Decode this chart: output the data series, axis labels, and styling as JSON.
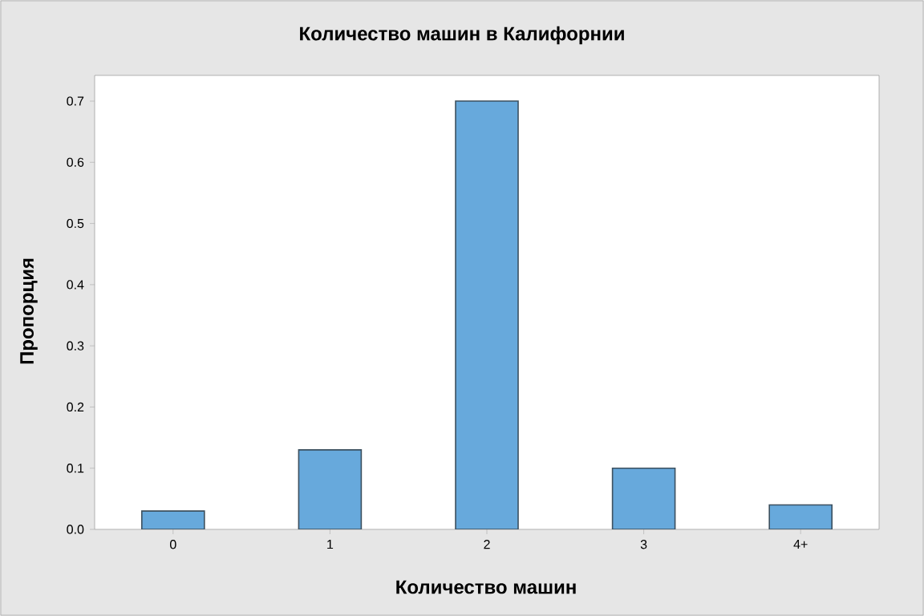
{
  "chart_data": {
    "type": "bar",
    "title": "Количество машин в Калифорнии",
    "xlabel": "Количество машин",
    "ylabel": "Пропорция",
    "categories": [
      "0",
      "1",
      "2",
      "3",
      "4+"
    ],
    "values": [
      0.03,
      0.13,
      0.7,
      0.1,
      0.04
    ],
    "color": "#67a9dc",
    "ylim": [
      0,
      0.742
    ],
    "yticks": [
      {
        "value": 0,
        "label": "0.0"
      },
      0.1,
      0.2,
      0.3,
      0.4,
      0.5,
      0.6,
      0.7
    ],
    "grid": false
  }
}
